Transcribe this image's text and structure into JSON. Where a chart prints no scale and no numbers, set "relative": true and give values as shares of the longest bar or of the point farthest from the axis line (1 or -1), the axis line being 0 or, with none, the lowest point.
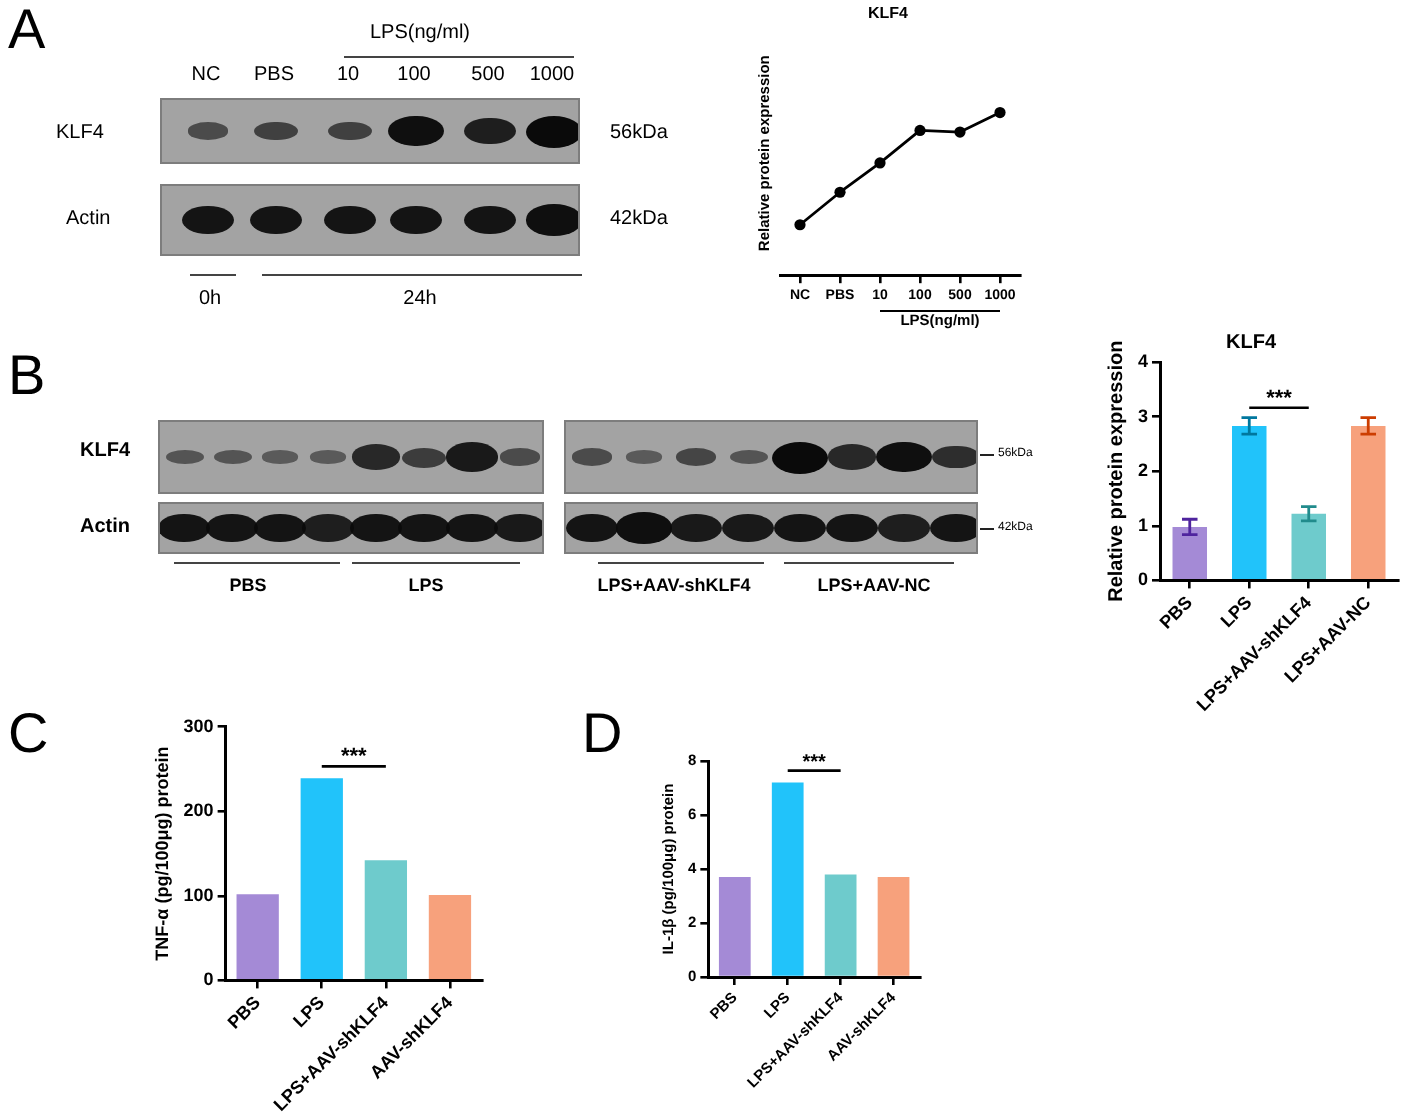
{
  "chart_data": [
    {
      "type": "other",
      "annotations": [
        "A",
        "LPS(ng/ml)",
        "NC",
        "PBS",
        "10",
        "100",
        "500",
        "1000",
        "KLF4",
        "Actin",
        "56kDa",
        "42kDa",
        "0h",
        "24h"
      ]
    },
    {
      "type": "line",
      "title": "KLF4",
      "xlabel": "LPS(ng/ml)",
      "ylabel": "Relative protein expression",
      "categories": [
        "NC",
        "PBS",
        "10",
        "100",
        "500",
        "1000"
      ],
      "relative": true,
      "marker": "circle",
      "line_style": "solid",
      "series": [
        {
          "color": "#000000",
          "values": [
            0.31,
            0.51,
            0.69,
            0.89,
            0.88,
            1.0
          ]
        }
      ]
    },
    {
      "type": "other",
      "annotations": [
        "B",
        "KLF4",
        "Actin",
        "56kDa",
        "42kDa",
        "PBS",
        "LPS",
        "LPS+AAV-shKLF4",
        "LPS+AAV-NC"
      ]
    },
    {
      "type": "bar",
      "title": "KLF4",
      "ylabel": "Relative protein expression",
      "categories": [
        "PBS",
        "LPS",
        "LPS+AAV-shKLF4",
        "LPS+AAV-NC"
      ],
      "values": [
        0.98,
        2.83,
        1.22,
        2.83
      ],
      "errors": [
        0.14,
        0.15,
        0.13,
        0.15
      ],
      "colors": [
        "#a48ad6",
        "#21c3fa",
        "#6ecbcc",
        "#f7a17c"
      ],
      "ylim": [
        0,
        4
      ],
      "yticks": [
        0,
        1,
        2,
        3,
        4
      ],
      "annotations": [
        "***"
      ]
    },
    {
      "type": "bar",
      "ylabel": "TNF-α (pg/100μg) protein",
      "categories": [
        "PBS",
        "LPS",
        "LPS+AAV-shKLF4",
        "AAV-shKLF4"
      ],
      "values": [
        102,
        239,
        142,
        101
      ],
      "colors": [
        "#a48ad6",
        "#21c3fa",
        "#6ecbcc",
        "#f7a17c"
      ],
      "ylim": [
        0,
        300
      ],
      "yticks": [
        0,
        100,
        200,
        300
      ],
      "annotations": [
        "C",
        "***"
      ]
    },
    {
      "type": "bar",
      "ylabel": "IL-1β (pg/100μg) protein",
      "categories": [
        "PBS",
        "LPS",
        "LPS+AAV-shKLF4",
        "AAV-shKLF4"
      ],
      "values": [
        3.7,
        7.2,
        3.8,
        3.7
      ],
      "colors": [
        "#a48ad6",
        "#21c3fa",
        "#6ecbcc",
        "#f7a17c"
      ],
      "ylim": [
        0,
        8
      ],
      "yticks": [
        0,
        2,
        4,
        6,
        8
      ],
      "annotations": [
        "D",
        "***"
      ]
    }
  ]
}
